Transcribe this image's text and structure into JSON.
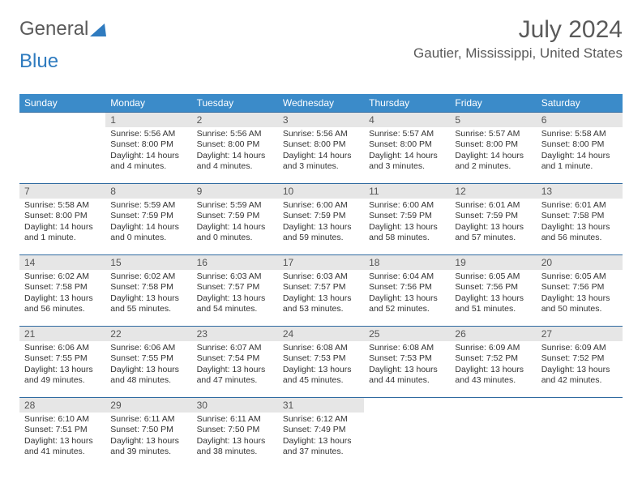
{
  "logo": {
    "text1": "General",
    "text2": "Blue"
  },
  "title": "July 2024",
  "location": "Gautier, Mississippi, United States",
  "colors": {
    "header_bg": "#3b8bc9",
    "header_text": "#ffffff",
    "daynum_bg": "#e6e6e6",
    "rule": "#2f6aa0",
    "logo_blue": "#2f7bbf"
  },
  "weekdays": [
    "Sunday",
    "Monday",
    "Tuesday",
    "Wednesday",
    "Thursday",
    "Friday",
    "Saturday"
  ],
  "weeks": [
    [
      {
        "empty": true
      },
      {
        "n": "1",
        "sr": "5:56 AM",
        "ss": "8:00 PM",
        "dl": "14 hours and 4 minutes."
      },
      {
        "n": "2",
        "sr": "5:56 AM",
        "ss": "8:00 PM",
        "dl": "14 hours and 4 minutes."
      },
      {
        "n": "3",
        "sr": "5:56 AM",
        "ss": "8:00 PM",
        "dl": "14 hours and 3 minutes."
      },
      {
        "n": "4",
        "sr": "5:57 AM",
        "ss": "8:00 PM",
        "dl": "14 hours and 3 minutes."
      },
      {
        "n": "5",
        "sr": "5:57 AM",
        "ss": "8:00 PM",
        "dl": "14 hours and 2 minutes."
      },
      {
        "n": "6",
        "sr": "5:58 AM",
        "ss": "8:00 PM",
        "dl": "14 hours and 1 minute."
      }
    ],
    [
      {
        "n": "7",
        "sr": "5:58 AM",
        "ss": "8:00 PM",
        "dl": "14 hours and 1 minute."
      },
      {
        "n": "8",
        "sr": "5:59 AM",
        "ss": "7:59 PM",
        "dl": "14 hours and 0 minutes."
      },
      {
        "n": "9",
        "sr": "5:59 AM",
        "ss": "7:59 PM",
        "dl": "14 hours and 0 minutes."
      },
      {
        "n": "10",
        "sr": "6:00 AM",
        "ss": "7:59 PM",
        "dl": "13 hours and 59 minutes."
      },
      {
        "n": "11",
        "sr": "6:00 AM",
        "ss": "7:59 PM",
        "dl": "13 hours and 58 minutes."
      },
      {
        "n": "12",
        "sr": "6:01 AM",
        "ss": "7:59 PM",
        "dl": "13 hours and 57 minutes."
      },
      {
        "n": "13",
        "sr": "6:01 AM",
        "ss": "7:58 PM",
        "dl": "13 hours and 56 minutes."
      }
    ],
    [
      {
        "n": "14",
        "sr": "6:02 AM",
        "ss": "7:58 PM",
        "dl": "13 hours and 56 minutes."
      },
      {
        "n": "15",
        "sr": "6:02 AM",
        "ss": "7:58 PM",
        "dl": "13 hours and 55 minutes."
      },
      {
        "n": "16",
        "sr": "6:03 AM",
        "ss": "7:57 PM",
        "dl": "13 hours and 54 minutes."
      },
      {
        "n": "17",
        "sr": "6:03 AM",
        "ss": "7:57 PM",
        "dl": "13 hours and 53 minutes."
      },
      {
        "n": "18",
        "sr": "6:04 AM",
        "ss": "7:56 PM",
        "dl": "13 hours and 52 minutes."
      },
      {
        "n": "19",
        "sr": "6:05 AM",
        "ss": "7:56 PM",
        "dl": "13 hours and 51 minutes."
      },
      {
        "n": "20",
        "sr": "6:05 AM",
        "ss": "7:56 PM",
        "dl": "13 hours and 50 minutes."
      }
    ],
    [
      {
        "n": "21",
        "sr": "6:06 AM",
        "ss": "7:55 PM",
        "dl": "13 hours and 49 minutes."
      },
      {
        "n": "22",
        "sr": "6:06 AM",
        "ss": "7:55 PM",
        "dl": "13 hours and 48 minutes."
      },
      {
        "n": "23",
        "sr": "6:07 AM",
        "ss": "7:54 PM",
        "dl": "13 hours and 47 minutes."
      },
      {
        "n": "24",
        "sr": "6:08 AM",
        "ss": "7:53 PM",
        "dl": "13 hours and 45 minutes."
      },
      {
        "n": "25",
        "sr": "6:08 AM",
        "ss": "7:53 PM",
        "dl": "13 hours and 44 minutes."
      },
      {
        "n": "26",
        "sr": "6:09 AM",
        "ss": "7:52 PM",
        "dl": "13 hours and 43 minutes."
      },
      {
        "n": "27",
        "sr": "6:09 AM",
        "ss": "7:52 PM",
        "dl": "13 hours and 42 minutes."
      }
    ],
    [
      {
        "n": "28",
        "sr": "6:10 AM",
        "ss": "7:51 PM",
        "dl": "13 hours and 41 minutes."
      },
      {
        "n": "29",
        "sr": "6:11 AM",
        "ss": "7:50 PM",
        "dl": "13 hours and 39 minutes."
      },
      {
        "n": "30",
        "sr": "6:11 AM",
        "ss": "7:50 PM",
        "dl": "13 hours and 38 minutes."
      },
      {
        "n": "31",
        "sr": "6:12 AM",
        "ss": "7:49 PM",
        "dl": "13 hours and 37 minutes."
      },
      {
        "empty": true
      },
      {
        "empty": true
      },
      {
        "empty": true
      }
    ]
  ],
  "labels": {
    "sunrise": "Sunrise:",
    "sunset": "Sunset:",
    "daylight": "Daylight:"
  }
}
